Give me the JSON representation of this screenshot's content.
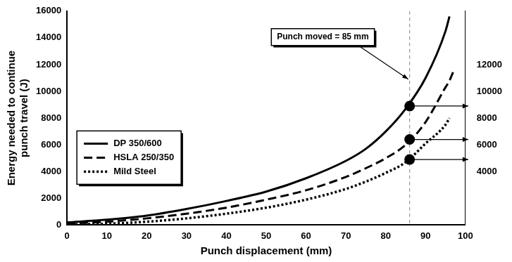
{
  "chart_data": {
    "type": "line",
    "x_label": "Punch displacement (mm)",
    "y_label": [
      "Energy needed to continue",
      "punch travel (J)"
    ],
    "x": [
      0,
      10,
      20,
      30,
      40,
      50,
      60,
      70,
      75,
      80,
      85,
      90,
      95,
      96,
      97
    ],
    "series": [
      {
        "name": "DP 350/600",
        "color": "#000000",
        "line_style": "solid",
        "values": [
          200,
          400,
          700,
          1200,
          1800,
          2500,
          3500,
          4800,
          5700,
          7000,
          8700,
          11000,
          14500,
          15600,
          null
        ]
      },
      {
        "name": "HSLA 250/350",
        "color": "#000000",
        "line_style": "dashed",
        "values": [
          100,
          250,
          500,
          850,
          1300,
          1900,
          2600,
          3600,
          4250,
          5000,
          6000,
          7700,
          10300,
          10800,
          11500
        ]
      },
      {
        "name": "Mild Steel",
        "color": "#000000",
        "line_style": "dotted",
        "values": [
          50,
          100,
          250,
          500,
          850,
          1300,
          1900,
          2700,
          3250,
          3900,
          4700,
          6100,
          7500,
          8000,
          null
        ]
      }
    ],
    "xlim": [
      0,
      100
    ],
    "xticks": [
      0,
      10,
      20,
      30,
      40,
      50,
      60,
      70,
      80,
      90,
      100
    ],
    "ylim": [
      0,
      16000
    ],
    "yticks": [
      0,
      2000,
      4000,
      6000,
      8000,
      10000,
      12000,
      14000,
      16000
    ],
    "y2lim": [
      0,
      16000
    ],
    "y2ticks": [
      4000,
      6000,
      8000,
      10000,
      12000
    ],
    "annotations": [
      {
        "text": "Punch moved = 85 mm",
        "x": 86
      }
    ],
    "highlight_points": {
      "x": 86,
      "values": [
        8900,
        6400,
        4900
      ]
    },
    "grid": false,
    "legend": "left"
  }
}
